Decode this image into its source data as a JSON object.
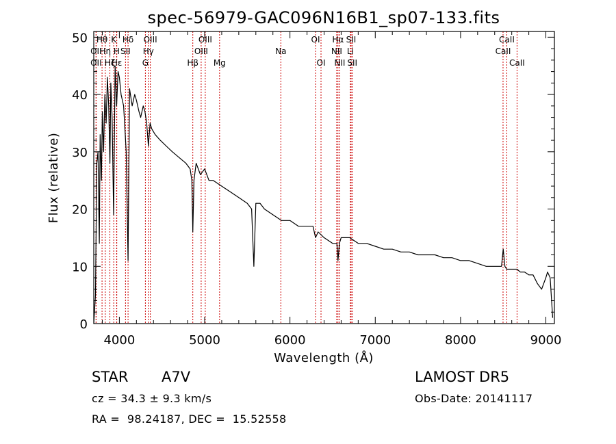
{
  "chart_data": {
    "type": "line",
    "title": "spec-56979-GAC096N16B1_sp07-133.fits",
    "xlabel": "Wavelength (Å)",
    "ylabel": "Flux (relative)",
    "xlim": [
      3700,
      9100
    ],
    "ylim": [
      0,
      51
    ],
    "x_ticks": [
      4000,
      5000,
      6000,
      7000,
      8000,
      9000
    ],
    "x_tick_labels": [
      "4000",
      "5000",
      "6000",
      "7000",
      "8000",
      "9000"
    ],
    "y_ticks": [
      0,
      10,
      20,
      30,
      40,
      50
    ],
    "y_tick_labels": [
      "0",
      "10",
      "20",
      "30",
      "40",
      "50"
    ],
    "grid": false,
    "line_color": "#000000",
    "marker_color": "#cc0000",
    "spectrum": {
      "x": [
        3700,
        3720,
        3735,
        3750,
        3765,
        3775,
        3790,
        3800,
        3815,
        3830,
        3845,
        3860,
        3875,
        3889,
        3900,
        3915,
        3933,
        3950,
        3968,
        3985,
        4000,
        4020,
        4050,
        4080,
        4102,
        4120,
        4150,
        4180,
        4200,
        4230,
        4250,
        4280,
        4300,
        4320,
        4340,
        4360,
        4380,
        4420,
        4480,
        4550,
        4620,
        4700,
        4780,
        4830,
        4850,
        4861,
        4875,
        4900,
        4950,
        5000,
        5050,
        5100,
        5200,
        5300,
        5400,
        5500,
        5550,
        5577,
        5600,
        5650,
        5700,
        5800,
        5900,
        6000,
        6100,
        6200,
        6270,
        6300,
        6330,
        6400,
        6500,
        6550,
        6563,
        6580,
        6600,
        6650,
        6700,
        6800,
        6900,
        7000,
        7100,
        7200,
        7300,
        7400,
        7500,
        7600,
        7700,
        7800,
        7900,
        8000,
        8100,
        8200,
        8300,
        8400,
        8480,
        8500,
        8520,
        8540,
        8600,
        8662,
        8700,
        8750,
        8800,
        8850,
        8900,
        8950,
        9000,
        9020,
        9050,
        9080
      ],
      "y": [
        0,
        5,
        28,
        30,
        14,
        33,
        25,
        37,
        30,
        40,
        35,
        43,
        38,
        28,
        42,
        36,
        19,
        45,
        38,
        44,
        43,
        40,
        38,
        30,
        11,
        41,
        38,
        40,
        39,
        37,
        36,
        38,
        37,
        35,
        31,
        35,
        34,
        33,
        32,
        31,
        30,
        29,
        28,
        27,
        25,
        16,
        25,
        28,
        26,
        27,
        25,
        25,
        24,
        23,
        22,
        21,
        20,
        10,
        21,
        21,
        20,
        19,
        18,
        18,
        17,
        17,
        17,
        15,
        16,
        15,
        14,
        14,
        11,
        14,
        15,
        15,
        15,
        14,
        14,
        13.5,
        13,
        13,
        12.5,
        12.5,
        12,
        12,
        12,
        11.5,
        11.5,
        11,
        11,
        10.5,
        10,
        10,
        10,
        13,
        10,
        9.5,
        9.5,
        9.5,
        9,
        9,
        8.5,
        8.5,
        7,
        6,
        8,
        9,
        8,
        1
      ]
    },
    "lines": [
      {
        "name": "Hθ",
        "wl": 3797,
        "row": 0
      },
      {
        "name": "K",
        "wl": 3934,
        "row": 0
      },
      {
        "name": "Hδ",
        "wl": 4102,
        "row": 0
      },
      {
        "name": "OIII",
        "wl": 4363,
        "row": 0
      },
      {
        "name": "OIII",
        "wl": 5007,
        "row": 0
      },
      {
        "name": "OI",
        "wl": 6300,
        "row": 0
      },
      {
        "name": "Hα",
        "wl": 6563,
        "row": 0
      },
      {
        "name": "SII",
        "wl": 6717,
        "row": 0
      },
      {
        "name": "CaII",
        "wl": 8542,
        "row": 0
      },
      {
        "name": "OII",
        "wl": 3727,
        "row": 1
      },
      {
        "name": "Hη",
        "wl": 3835,
        "row": 1
      },
      {
        "name": "H",
        "wl": 3968,
        "row": 1
      },
      {
        "name": "SII",
        "wl": 4072,
        "row": 1
      },
      {
        "name": "Hγ",
        "wl": 4340,
        "row": 1
      },
      {
        "name": "OIII",
        "wl": 4959,
        "row": 1
      },
      {
        "name": "Na",
        "wl": 5893,
        "row": 1
      },
      {
        "name": "NII",
        "wl": 6548,
        "row": 1
      },
      {
        "name": "Li",
        "wl": 6708,
        "row": 1
      },
      {
        "name": "CaII",
        "wl": 8498,
        "row": 1
      },
      {
        "name": "OII",
        "wl": 3727,
        "row": 2
      },
      {
        "name": "Hζ",
        "wl": 3889,
        "row": 2
      },
      {
        "name": "Hε",
        "wl": 3970,
        "row": 2
      },
      {
        "name": "G",
        "wl": 4305,
        "row": 2
      },
      {
        "name": "Hβ",
        "wl": 4861,
        "row": 2
      },
      {
        "name": "Mg",
        "wl": 5175,
        "row": 2
      },
      {
        "name": "OI",
        "wl": 6364,
        "row": 2
      },
      {
        "name": "NII",
        "wl": 6584,
        "row": 2
      },
      {
        "name": "SII",
        "wl": 6731,
        "row": 2
      },
      {
        "name": "CaII",
        "wl": 8662,
        "row": 2
      }
    ]
  },
  "info": {
    "class_label": "STAR",
    "subclass": "A7V",
    "survey": "LAMOST DR5",
    "cz_text": "cz = 34.3 ± 9.3 km/s",
    "obs_date": "Obs-Date: 20141117",
    "radec": "RA =  98.24187, DEC =  15.52558"
  }
}
